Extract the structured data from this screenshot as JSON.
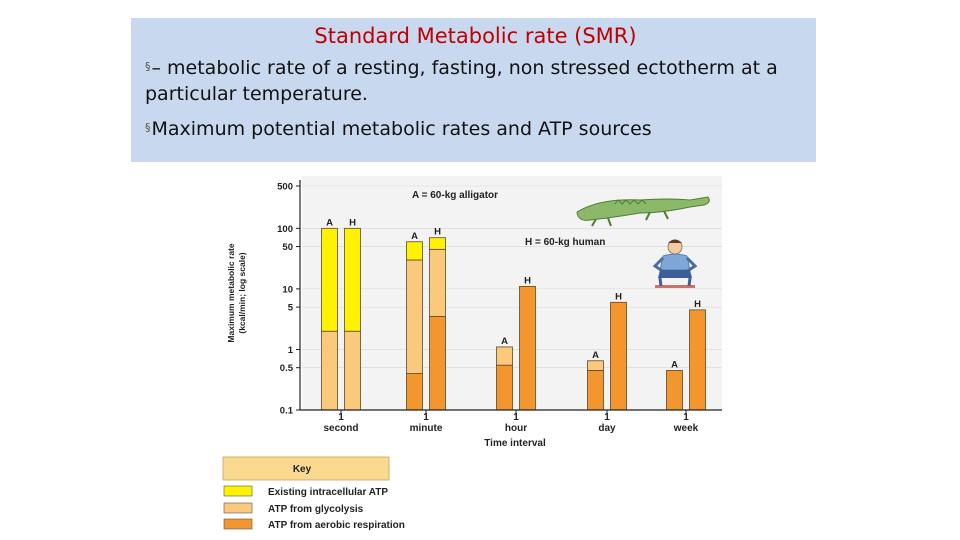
{
  "slide": {
    "title": "Standard Metabolic rate (SMR)",
    "bullet_mark": "§",
    "bullets": [
      "– metabolic rate of a resting, fasting, non stressed ectotherm at a particular temperature.",
      "Maximum potential metabolic rates and ATP sources"
    ]
  },
  "chart_data": {
    "type": "bar",
    "stacked": true,
    "yscale": "log",
    "ylabel": "Maximum metabolic rate",
    "ylabel_units": "(kcal/min; log scale)",
    "xlabel": "Time interval",
    "ylim": [
      0.1,
      500
    ],
    "yticks": [
      500,
      100,
      50,
      10,
      5,
      1,
      0.5,
      0.1
    ],
    "categories": [
      {
        "top": "1",
        "bottom": "second"
      },
      {
        "top": "1",
        "bottom": "minute"
      },
      {
        "top": "1",
        "bottom": "hour"
      },
      {
        "top": "1",
        "bottom": "day"
      },
      {
        "top": "1",
        "bottom": "week"
      }
    ],
    "annotations": [
      "A = 60-kg alligator",
      "H = 60-kg human"
    ],
    "series_names": [
      "Existing intracellular ATP",
      "ATP from glycolysis",
      "ATP from aerobic respiration"
    ],
    "colors": {
      "intracellular": "#fff200",
      "glycolysis": "#fbc97c",
      "aerobic": "#f3962d",
      "plot_bg": "#f3f3f3",
      "key_header": "#fbd98f"
    },
    "key_title": "Key",
    "bars": [
      {
        "category": 0,
        "label": "A",
        "segments": [
          {
            "series": 1,
            "from": 0.1,
            "to": 2
          },
          {
            "series": 0,
            "from": 2,
            "to": 100
          }
        ]
      },
      {
        "category": 0,
        "label": "H",
        "segments": [
          {
            "series": 1,
            "from": 0.1,
            "to": 2
          },
          {
            "series": 0,
            "from": 2,
            "to": 100
          }
        ]
      },
      {
        "category": 1,
        "label": "A",
        "segments": [
          {
            "series": 2,
            "from": 0.1,
            "to": 0.4
          },
          {
            "series": 1,
            "from": 0.4,
            "to": 30
          },
          {
            "series": 0,
            "from": 30,
            "to": 60
          }
        ]
      },
      {
        "category": 1,
        "label": "H",
        "segments": [
          {
            "series": 2,
            "from": 0.1,
            "to": 3.5
          },
          {
            "series": 1,
            "from": 3.5,
            "to": 45
          },
          {
            "series": 0,
            "from": 45,
            "to": 70
          }
        ]
      },
      {
        "category": 2,
        "label": "A",
        "segments": [
          {
            "series": 2,
            "from": 0.1,
            "to": 0.55
          },
          {
            "series": 1,
            "from": 0.55,
            "to": 1.1
          }
        ]
      },
      {
        "category": 2,
        "label": "H",
        "segments": [
          {
            "series": 2,
            "from": 0.1,
            "to": 11
          }
        ]
      },
      {
        "category": 3,
        "label": "A",
        "segments": [
          {
            "series": 2,
            "from": 0.1,
            "to": 0.45
          },
          {
            "series": 1,
            "from": 0.45,
            "to": 0.65
          }
        ]
      },
      {
        "category": 3,
        "label": "H",
        "segments": [
          {
            "series": 2,
            "from": 0.1,
            "to": 6
          }
        ]
      },
      {
        "category": 4,
        "label": "A",
        "segments": [
          {
            "series": 2,
            "from": 0.1,
            "to": 0.45
          }
        ]
      },
      {
        "category": 4,
        "label": "H",
        "segments": [
          {
            "series": 2,
            "from": 0.1,
            "to": 4.5
          }
        ]
      }
    ]
  }
}
